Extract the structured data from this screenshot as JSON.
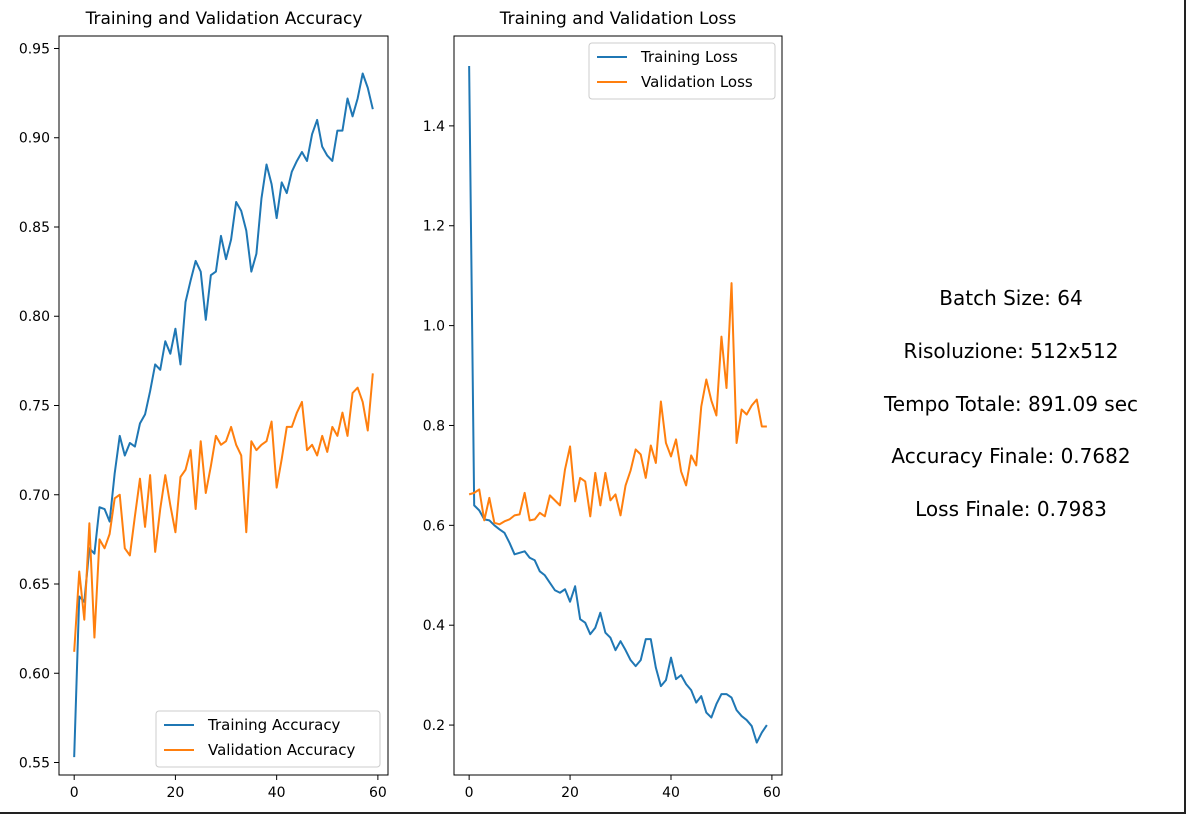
{
  "colors": {
    "training": "#1f77b4",
    "validation": "#ff7f0e"
  },
  "chart_data": [
    {
      "type": "line",
      "title": "Training and Validation Accuracy",
      "xlabel": "",
      "ylabel": "",
      "xlim": [
        -3,
        62
      ],
      "ylim": [
        0.543,
        0.957
      ],
      "xticks": [
        0,
        20,
        40,
        60
      ],
      "yticks": [
        0.55,
        0.6,
        0.65,
        0.7,
        0.75,
        0.8,
        0.85,
        0.9,
        0.95
      ],
      "legend": "lower-right",
      "x": [
        0,
        1,
        2,
        3,
        4,
        5,
        6,
        7,
        8,
        9,
        10,
        11,
        12,
        13,
        14,
        15,
        16,
        17,
        18,
        19,
        20,
        21,
        22,
        23,
        24,
        25,
        26,
        27,
        28,
        29,
        30,
        31,
        32,
        33,
        34,
        35,
        36,
        37,
        38,
        39,
        40,
        41,
        42,
        43,
        44,
        45,
        46,
        47,
        48,
        49,
        50,
        51,
        52,
        53,
        54,
        55,
        56,
        57,
        58,
        59
      ],
      "series": [
        {
          "name": "Training Accuracy",
          "values": [
            0.553,
            0.643,
            0.64,
            0.67,
            0.667,
            0.693,
            0.692,
            0.685,
            0.712,
            0.733,
            0.722,
            0.729,
            0.727,
            0.74,
            0.745,
            0.758,
            0.773,
            0.77,
            0.786,
            0.779,
            0.793,
            0.773,
            0.808,
            0.82,
            0.831,
            0.825,
            0.798,
            0.823,
            0.825,
            0.845,
            0.832,
            0.843,
            0.864,
            0.859,
            0.848,
            0.825,
            0.835,
            0.866,
            0.885,
            0.874,
            0.855,
            0.875,
            0.869,
            0.881,
            0.887,
            0.892,
            0.887,
            0.902,
            0.91,
            0.895,
            0.89,
            0.887,
            0.904,
            0.904,
            0.922,
            0.912,
            0.922,
            0.936,
            0.928,
            0.916
          ]
        },
        {
          "name": "Validation Accuracy",
          "values": [
            0.612,
            0.657,
            0.63,
            0.684,
            0.62,
            0.675,
            0.67,
            0.678,
            0.698,
            0.7,
            0.67,
            0.666,
            0.688,
            0.709,
            0.682,
            0.711,
            0.668,
            0.692,
            0.711,
            0.694,
            0.679,
            0.71,
            0.714,
            0.725,
            0.692,
            0.73,
            0.701,
            0.716,
            0.733,
            0.728,
            0.73,
            0.738,
            0.728,
            0.722,
            0.679,
            0.73,
            0.725,
            0.728,
            0.73,
            0.741,
            0.704,
            0.72,
            0.738,
            0.738,
            0.746,
            0.752,
            0.725,
            0.728,
            0.722,
            0.733,
            0.724,
            0.738,
            0.733,
            0.746,
            0.733,
            0.757,
            0.76,
            0.752,
            0.736,
            0.768
          ]
        }
      ]
    },
    {
      "type": "line",
      "title": "Training and Validation Loss",
      "xlabel": "",
      "ylabel": "",
      "xlim": [
        -3,
        62
      ],
      "ylim": [
        0.1,
        1.58
      ],
      "xticks": [
        0,
        20,
        40,
        60
      ],
      "yticks": [
        0.2,
        0.4,
        0.6,
        0.8,
        1.0,
        1.2,
        1.4
      ],
      "legend": "upper-right",
      "x": [
        0,
        1,
        2,
        3,
        4,
        5,
        6,
        7,
        8,
        9,
        10,
        11,
        12,
        13,
        14,
        15,
        16,
        17,
        18,
        19,
        20,
        21,
        22,
        23,
        24,
        25,
        26,
        27,
        28,
        29,
        30,
        31,
        32,
        33,
        34,
        35,
        36,
        37,
        38,
        39,
        40,
        41,
        42,
        43,
        44,
        45,
        46,
        47,
        48,
        49,
        50,
        51,
        52,
        53,
        54,
        55,
        56,
        57,
        58,
        59
      ],
      "series": [
        {
          "name": "Training Loss",
          "values": [
            1.52,
            0.64,
            0.63,
            0.612,
            0.61,
            0.6,
            0.592,
            0.585,
            0.565,
            0.542,
            0.545,
            0.548,
            0.535,
            0.53,
            0.508,
            0.5,
            0.485,
            0.47,
            0.465,
            0.472,
            0.447,
            0.478,
            0.412,
            0.405,
            0.382,
            0.395,
            0.425,
            0.385,
            0.375,
            0.35,
            0.368,
            0.35,
            0.33,
            0.318,
            0.33,
            0.372,
            0.372,
            0.315,
            0.278,
            0.29,
            0.335,
            0.292,
            0.3,
            0.282,
            0.27,
            0.245,
            0.258,
            0.225,
            0.215,
            0.242,
            0.262,
            0.262,
            0.255,
            0.23,
            0.218,
            0.21,
            0.198,
            0.165,
            0.185,
            0.2
          ]
        },
        {
          "name": "Validation Loss",
          "values": [
            0.662,
            0.665,
            0.672,
            0.61,
            0.655,
            0.605,
            0.602,
            0.608,
            0.612,
            0.62,
            0.622,
            0.665,
            0.61,
            0.612,
            0.625,
            0.618,
            0.66,
            0.65,
            0.64,
            0.712,
            0.758,
            0.648,
            0.695,
            0.688,
            0.618,
            0.705,
            0.64,
            0.705,
            0.65,
            0.662,
            0.62,
            0.68,
            0.71,
            0.752,
            0.742,
            0.695,
            0.76,
            0.725,
            0.848,
            0.765,
            0.738,
            0.772,
            0.708,
            0.68,
            0.74,
            0.72,
            0.838,
            0.892,
            0.85,
            0.82,
            0.978,
            0.875,
            1.085,
            0.765,
            0.832,
            0.822,
            0.84,
            0.852,
            0.798,
            0.798
          ]
        }
      ]
    }
  ],
  "info": {
    "batch_size": "Batch Size: 64",
    "risoluzione": "Risoluzione: 512x512",
    "tempo_totale": "Tempo Totale: 891.09 sec",
    "accuracy_finale": "Accuracy Finale: 0.7682",
    "loss_finale": "Loss Finale: 0.7983"
  }
}
